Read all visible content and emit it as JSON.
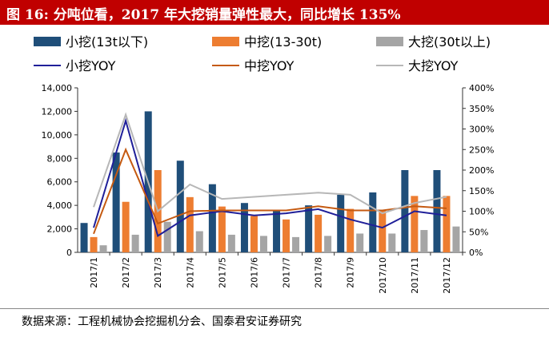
{
  "header": {
    "title": "图 16: 分吨位看，2017 年大挖销量弹性最大，同比增长 135%"
  },
  "footer": {
    "source": "数据来源：工程机械协会挖掘机分会、国泰君安证券研究"
  },
  "colors": {
    "title_bg": "#c00000",
    "small_bar": "#1f4e79",
    "medium_bar": "#ed7d31",
    "large_bar": "#a5a5a5",
    "small_line": "#1f1f99",
    "medium_line": "#c55a11",
    "large_line": "#b7b7b7"
  },
  "chart_data": {
    "type": "bar",
    "categories": [
      "2017/1",
      "2017/2",
      "2017/3",
      "2017/4",
      "2017/5",
      "2017/6",
      "2017/7",
      "2017/8",
      "2017/9",
      "2017/10",
      "2017/11",
      "2017/12"
    ],
    "series": [
      {
        "name": "小挖(13t以下)",
        "kind": "bar",
        "axis": "left",
        "values": [
          2500,
          8500,
          12000,
          7800,
          5800,
          4200,
          3500,
          4000,
          4900,
          5100,
          7000,
          7000
        ]
      },
      {
        "name": "中挖(13-30t)",
        "kind": "bar",
        "axis": "left",
        "values": [
          1300,
          4300,
          7000,
          4700,
          3900,
          3100,
          2800,
          3200,
          3700,
          3600,
          4800,
          4800
        ]
      },
      {
        "name": "大挖(30t以上)",
        "kind": "bar",
        "axis": "left",
        "values": [
          600,
          1500,
          2600,
          1800,
          1500,
          1400,
          1300,
          1400,
          1600,
          1600,
          1900,
          2200
        ]
      },
      {
        "name": "小挖YOY",
        "kind": "line",
        "axis": "right",
        "values": [
          0.6,
          3.2,
          0.4,
          0.9,
          1.0,
          0.9,
          0.95,
          1.05,
          0.8,
          0.6,
          1.0,
          0.9
        ]
      },
      {
        "name": "中挖YOY",
        "kind": "line",
        "axis": "right",
        "values": [
          0.45,
          2.5,
          0.7,
          1.0,
          1.02,
          1.02,
          1.02,
          1.12,
          1.02,
          1.02,
          1.12,
          1.07
        ]
      },
      {
        "name": "大挖YOY",
        "kind": "line",
        "axis": "right",
        "values": [
          1.1,
          3.35,
          1.0,
          1.65,
          1.3,
          1.35,
          1.4,
          1.45,
          1.4,
          0.95,
          1.2,
          1.35
        ]
      }
    ],
    "yleft": {
      "min": 0,
      "max": 14000,
      "ticks": [
        "0",
        "2,000",
        "4,000",
        "6,000",
        "8,000",
        "10,000",
        "12,000",
        "14,000"
      ]
    },
    "yright": {
      "min": 0,
      "max": 4,
      "ticks": [
        "0%",
        "50%",
        "100%",
        "150%",
        "200%",
        "250%",
        "300%",
        "350%",
        "400%"
      ]
    },
    "legend_position": "top",
    "grid": false
  }
}
